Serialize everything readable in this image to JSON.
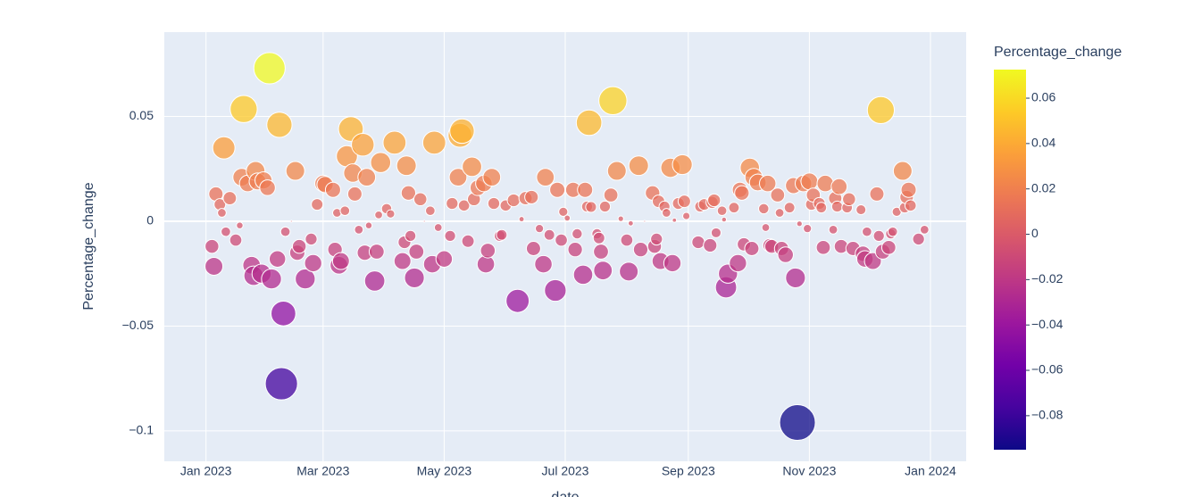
{
  "chart_data": {
    "type": "scatter",
    "x_label": "date",
    "y_label": "Percentage_change",
    "colorbar_title": "Percentage_change",
    "xlim": [
      "2022-12-11",
      "2024-01-19"
    ],
    "xticks": [
      {
        "value": "2023-01-01",
        "label": "Jan 2023"
      },
      {
        "value": "2023-03-01",
        "label": "Mar 2023"
      },
      {
        "value": "2023-05-01",
        "label": "May 2023"
      },
      {
        "value": "2023-07-01",
        "label": "Jul 2023"
      },
      {
        "value": "2023-09-01",
        "label": "Sep 2023"
      },
      {
        "value": "2023-11-01",
        "label": "Nov 2023"
      },
      {
        "value": "2024-01-01",
        "label": "Jan 2024"
      }
    ],
    "ylim": [
      -0.1145,
      0.0902
    ],
    "yticks": [
      {
        "value": -0.1,
        "label": "−0.1"
      },
      {
        "value": -0.05,
        "label": "−0.05"
      },
      0,
      0.05
    ],
    "grid": true,
    "clim": [
      -0.095,
      0.0726
    ],
    "cticks": [
      {
        "value": -0.08,
        "label": "−0.08"
      },
      {
        "value": -0.06,
        "label": "−0.06"
      },
      {
        "value": -0.04,
        "label": "−0.04"
      },
      {
        "value": -0.02,
        "label": "−0.02"
      },
      0,
      0.02,
      0.04,
      0.06
    ],
    "colorscale": [
      "#0d0887",
      "#46039f",
      "#7201a8",
      "#9c179e",
      "#bd3786",
      "#d8576b",
      "#ed7953",
      "#fb9f3a",
      "#fdca26",
      "#f0f921"
    ],
    "x": [
      "2023-01-04",
      "2023-01-05",
      "2023-01-06",
      "2023-01-08",
      "2023-01-09",
      "2023-01-10",
      "2023-01-11",
      "2023-01-13",
      "2023-01-16",
      "2023-01-18",
      "2023-01-19",
      "2023-01-20",
      "2023-01-22",
      "2023-01-24",
      "2023-01-25",
      "2023-01-26",
      "2023-01-27",
      "2023-01-29",
      "2023-01-30",
      "2023-02-01",
      "2023-02-02",
      "2023-02-03",
      "2023-02-06",
      "2023-02-07",
      "2023-02-08",
      "2023-02-09",
      "2023-02-10",
      "2023-02-13",
      "2023-02-15",
      "2023-02-16",
      "2023-02-17",
      "2023-02-20",
      "2023-02-23",
      "2023-02-24",
      "2023-02-26",
      "2023-03-01",
      "2023-03-02",
      "2023-03-06",
      "2023-03-07",
      "2023-03-08",
      "2023-03-09",
      "2023-03-10",
      "2023-03-12",
      "2023-03-13",
      "2023-03-15",
      "2023-03-16",
      "2023-03-17",
      "2023-03-19",
      "2023-03-21",
      "2023-03-22",
      "2023-03-23",
      "2023-03-24",
      "2023-03-27",
      "2023-03-28",
      "2023-03-29",
      "2023-03-30",
      "2023-04-02",
      "2023-04-04",
      "2023-04-06",
      "2023-04-10",
      "2023-04-11",
      "2023-04-12",
      "2023-04-13",
      "2023-04-14",
      "2023-04-16",
      "2023-04-17",
      "2023-04-19",
      "2023-04-21",
      "2023-04-24",
      "2023-04-25",
      "2023-04-26",
      "2023-04-28",
      "2023-05-01",
      "2023-05-04",
      "2023-05-05",
      "2023-05-08",
      "2023-05-09",
      "2023-05-10",
      "2023-05-11",
      "2023-05-13",
      "2023-05-15",
      "2023-05-16",
      "2023-05-18",
      "2023-05-21",
      "2023-05-22",
      "2023-05-23",
      "2023-05-25",
      "2023-05-26",
      "2023-05-29",
      "2023-05-30",
      "2023-06-01",
      "2023-06-05",
      "2023-06-07",
      "2023-06-09",
      "2023-06-11",
      "2023-06-14",
      "2023-06-15",
      "2023-06-18",
      "2023-06-20",
      "2023-06-21",
      "2023-06-23",
      "2023-06-26",
      "2023-06-27",
      "2023-06-29",
      "2023-06-30",
      "2023-07-02",
      "2023-07-05",
      "2023-07-06",
      "2023-07-07",
      "2023-07-10",
      "2023-07-11",
      "2023-07-12",
      "2023-07-13",
      "2023-07-14",
      "2023-07-17",
      "2023-07-18",
      "2023-07-19",
      "2023-07-20",
      "2023-07-21",
      "2023-07-24",
      "2023-07-25",
      "2023-07-27",
      "2023-07-29",
      "2023-08-01",
      "2023-08-02",
      "2023-08-03",
      "2023-08-07",
      "2023-08-08",
      "2023-08-10",
      "2023-08-14",
      "2023-08-15",
      "2023-08-16",
      "2023-08-17",
      "2023-08-18",
      "2023-08-20",
      "2023-08-21",
      "2023-08-23",
      "2023-08-24",
      "2023-08-25",
      "2023-08-27",
      "2023-08-29",
      "2023-08-30",
      "2023-08-31",
      "2023-09-06",
      "2023-09-07",
      "2023-09-09",
      "2023-09-12",
      "2023-09-13",
      "2023-09-14",
      "2023-09-15",
      "2023-09-18",
      "2023-09-19",
      "2023-09-20",
      "2023-09-21",
      "2023-09-24",
      "2023-09-26",
      "2023-09-27",
      "2023-09-28",
      "2023-09-29",
      "2023-10-02",
      "2023-10-03",
      "2023-10-04",
      "2023-10-06",
      "2023-10-09",
      "2023-10-10",
      "2023-10-11",
      "2023-10-12",
      "2023-10-13",
      "2023-10-16",
      "2023-10-17",
      "2023-10-18",
      "2023-10-20",
      "2023-10-22",
      "2023-10-24",
      "2023-10-25",
      "2023-10-26",
      "2023-10-27",
      "2023-10-29",
      "2023-10-31",
      "2023-11-01",
      "2023-11-02",
      "2023-11-03",
      "2023-11-06",
      "2023-11-07",
      "2023-11-08",
      "2023-11-09",
      "2023-11-13",
      "2023-11-14",
      "2023-11-15",
      "2023-11-16",
      "2023-11-17",
      "2023-11-20",
      "2023-11-21",
      "2023-11-23",
      "2023-11-27",
      "2023-11-28",
      "2023-11-29",
      "2023-11-30",
      "2023-12-03",
      "2023-12-05",
      "2023-12-06",
      "2023-12-07",
      "2023-12-08",
      "2023-12-11",
      "2023-12-12",
      "2023-12-13",
      "2023-12-15",
      "2023-12-18",
      "2023-12-19",
      "2023-12-20",
      "2023-12-21",
      "2023-12-22",
      "2023-12-26",
      "2023-12-29"
    ],
    "values": [
      -0.012,
      -0.0215,
      0.013,
      0.008,
      0.004,
      0.035,
      -0.005,
      0.011,
      -0.009,
      -0.002,
      0.021,
      0.0535,
      0.018,
      -0.021,
      -0.026,
      0.024,
      0.019,
      -0.025,
      0.0195,
      0.016,
      0.073,
      -0.0275,
      -0.018,
      0.046,
      -0.0775,
      -0.044,
      -0.005,
      0.0,
      0.024,
      -0.015,
      -0.012,
      -0.0275,
      -0.0085,
      -0.02,
      0.008,
      0.018,
      0.0175,
      0.015,
      -0.0135,
      0.004,
      -0.021,
      -0.019,
      0.005,
      0.031,
      0.044,
      0.023,
      0.013,
      -0.004,
      0.0365,
      -0.015,
      0.021,
      -0.002,
      -0.0285,
      -0.0145,
      0.003,
      0.028,
      0.006,
      0.0035,
      0.0375,
      -0.019,
      -0.01,
      0.0265,
      0.0135,
      -0.007,
      -0.027,
      -0.0145,
      0.0105,
      0.0,
      0.005,
      -0.0205,
      0.0375,
      -0.003,
      -0.018,
      -0.007,
      0.0085,
      0.021,
      0.041,
      0.043,
      0.0075,
      -0.0095,
      0.026,
      0.0105,
      0.016,
      0.018,
      -0.0205,
      -0.014,
      0.021,
      0.0085,
      -0.007,
      -0.0065,
      0.0075,
      0.01,
      -0.038,
      0.001,
      0.011,
      0.0115,
      -0.013,
      -0.0035,
      -0.0205,
      0.021,
      -0.0065,
      -0.033,
      0.015,
      -0.009,
      0.0045,
      0.0015,
      0.015,
      -0.0135,
      -0.006,
      -0.0255,
      0.015,
      0.007,
      0.047,
      0.0068,
      -0.006,
      -0.008,
      -0.0145,
      -0.0235,
      0.007,
      0.0125,
      0.0575,
      0.024,
      0.0012,
      -0.009,
      -0.024,
      -0.001,
      0.0265,
      -0.0135,
      0.0,
      0.0135,
      -0.012,
      -0.0085,
      0.0095,
      -0.019,
      0.007,
      0.004,
      0.0255,
      -0.02,
      0.0005,
      0.0085,
      0.027,
      0.0095,
      0.0025,
      -0.01,
      0.007,
      0.008,
      -0.0115,
      0.009,
      0.01,
      -0.0055,
      0.005,
      0.0008,
      -0.0315,
      -0.025,
      0.0065,
      -0.02,
      0.015,
      0.0135,
      -0.011,
      0.0255,
      -0.013,
      0.021,
      0.0185,
      0.006,
      -0.003,
      0.018,
      -0.0115,
      -0.012,
      0.0125,
      0.004,
      -0.013,
      -0.016,
      0.0065,
      0.017,
      -0.027,
      -0.096,
      -0.0012,
      0.018,
      -0.0035,
      0.019,
      0.008,
      0.0125,
      0.0085,
      0.0065,
      -0.0125,
      0.018,
      -0.004,
      0.011,
      0.007,
      0.0165,
      -0.012,
      0.0065,
      0.0105,
      -0.013,
      0.0055,
      -0.0155,
      -0.018,
      -0.005,
      -0.019,
      0.013,
      -0.007,
      0.053,
      -0.0145,
      -0.0125,
      -0.006,
      -0.005,
      0.0045,
      0.024,
      0.0065,
      0.0115,
      0.015,
      0.0075,
      -0.0085,
      -0.004
    ]
  }
}
